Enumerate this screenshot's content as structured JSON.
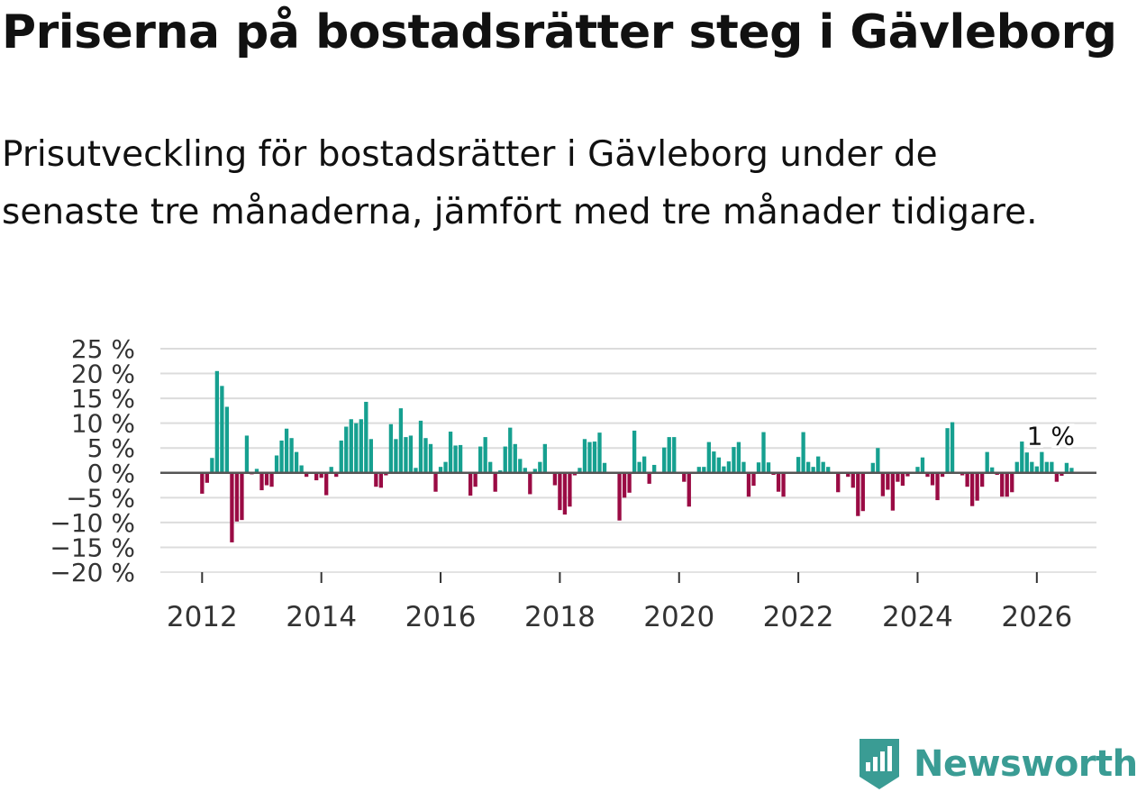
{
  "title": "Priserna på bostadsrätter steg i Gävleborg",
  "subtitle": "Prisutveckling för bostadsrätter i Gävleborg under de senaste tre månaderna, jämfört med tre månader tidigare.",
  "brand": {
    "name": "Newsworthy",
    "color": "#3a9c94",
    "icon": "newsworthy-logo-icon"
  },
  "chart_data": {
    "type": "bar",
    "title": "Priserna på bostadsrätter steg i Gävleborg",
    "xlabel": "",
    "ylabel": "",
    "ylim": [
      -20,
      25
    ],
    "xlim": [
      2011.3,
      2027.0
    ],
    "yticks": [
      25,
      20,
      15,
      10,
      5,
      0,
      -5,
      -10,
      -15,
      -20
    ],
    "ytick_labels": [
      "25 %",
      "20 %",
      "15 %",
      "10 %",
      "5 %",
      "0 %",
      "−5 %",
      "−10 %",
      "−15 %",
      "−20 %"
    ],
    "xticks": [
      2012,
      2014,
      2016,
      2018,
      2020,
      2022,
      2024,
      2026
    ],
    "xtick_labels": [
      "2012",
      "2014",
      "2016",
      "2018",
      "2020",
      "2022",
      "2024",
      "2026"
    ],
    "start": "2012-01",
    "frequency": "monthly",
    "values": [
      -4.2,
      -2.0,
      3.0,
      20.5,
      17.5,
      13.3,
      -14.0,
      -9.8,
      -9.5,
      7.5,
      -0.3,
      0.8,
      -3.5,
      -2.5,
      -2.8,
      3.5,
      6.5,
      8.9,
      7.0,
      4.2,
      1.5,
      -0.8,
      0.0,
      -1.5,
      -1.0,
      -4.5,
      1.2,
      -0.8,
      6.5,
      9.3,
      10.8,
      10.0,
      10.8,
      14.3,
      6.8,
      -2.8,
      -3.0,
      -0.5,
      9.8,
      6.8,
      13.0,
      7.2,
      7.5,
      1.0,
      10.5,
      7.0,
      5.8,
      -3.8,
      1.2,
      2.2,
      8.3,
      5.5,
      5.6,
      0.0,
      -4.6,
      -2.8,
      5.3,
      7.2,
      2.2,
      -3.8,
      0.5,
      5.3,
      9.1,
      5.8,
      2.8,
      1.0,
      -4.3,
      0.8,
      2.2,
      5.8,
      0.0,
      -2.5,
      -7.5,
      -8.4,
      -6.8,
      -0.5,
      1.0,
      6.8,
      6.2,
      6.3,
      8.1,
      2.0,
      0.0,
      -0.2,
      -9.6,
      -5.0,
      -4.0,
      8.5,
      2.2,
      3.3,
      -2.2,
      1.6,
      0.0,
      5.1,
      7.2,
      7.2,
      0.0,
      -1.8,
      -6.8,
      0.0,
      1.2,
      1.2,
      6.2,
      4.3,
      3.1,
      1.3,
      2.3,
      5.2,
      6.2,
      2.2,
      -4.8,
      -2.6,
      2.1,
      8.2,
      2.1,
      -0.4,
      -3.8,
      -4.8,
      0.0,
      0.0,
      3.2,
      8.2,
      2.2,
      1.2,
      3.3,
      2.2,
      1.2,
      0.0,
      -3.9,
      0.0,
      -0.8,
      -3.0,
      -8.7,
      -7.7,
      0.0,
      2.0,
      5.0,
      -4.7,
      -3.4,
      -7.6,
      -1.8,
      -2.6,
      -0.7,
      0.0,
      1.2,
      3.1,
      -0.8,
      -2.5,
      -5.5,
      -0.8,
      9.0,
      10.2,
      0.0,
      -0.5,
      -2.8,
      -6.7,
      -5.6,
      -2.8,
      4.2,
      1.1,
      -0.4,
      -4.8,
      -4.8,
      -3.9,
      2.2,
      6.3,
      4.1,
      2.2,
      1.3,
      4.2,
      2.2,
      2.2,
      -1.8,
      -0.6,
      2.0,
      1.0
    ],
    "positive_color": "#16a090",
    "negative_color": "#9a0b44",
    "annotation": {
      "text": "1 %",
      "date": "2026-02",
      "value": 1.0
    }
  }
}
